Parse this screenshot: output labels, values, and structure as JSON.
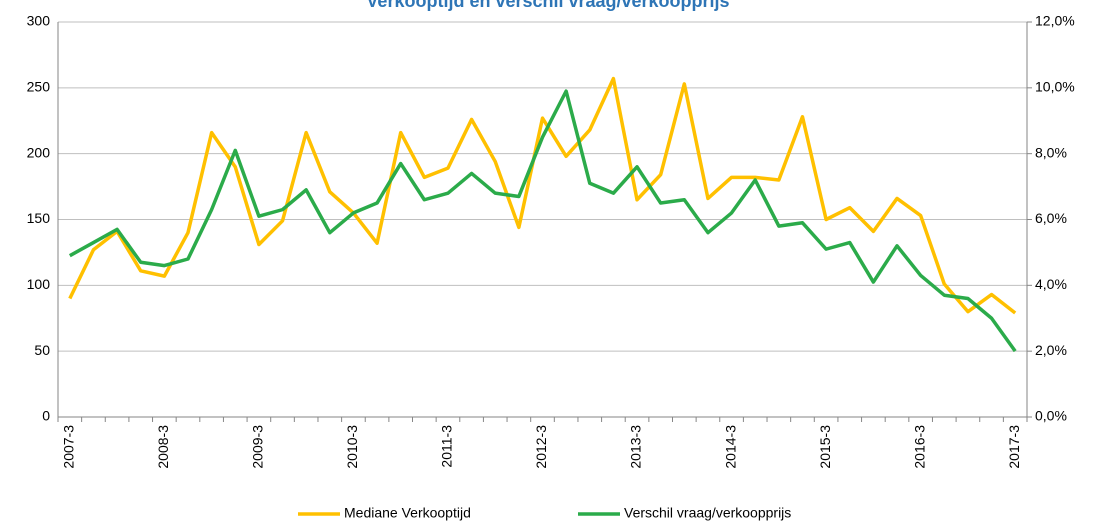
{
  "chart_data": {
    "type": "line",
    "title": "Verkooptijd en verschil vraag/verkoopprijs",
    "categories": [
      "2007-3",
      null,
      null,
      null,
      "2008-3",
      null,
      null,
      null,
      "2009-3",
      null,
      null,
      null,
      "2010-3",
      null,
      null,
      null,
      "2011-3",
      null,
      null,
      null,
      "2012-3",
      null,
      null,
      null,
      "2013-3",
      null,
      null,
      null,
      "2014-3",
      null,
      null,
      null,
      "2015-3",
      null,
      null,
      null,
      "2016-3",
      null,
      null,
      null,
      "2017-3"
    ],
    "series": [
      {
        "name": "Mediane Verkooptijd",
        "color": "#ffc000",
        "axis": "y",
        "values": [
          90,
          127,
          141,
          111,
          107,
          140,
          216,
          190,
          131,
          149,
          216,
          171,
          155,
          132,
          216,
          182,
          189,
          226,
          194,
          144,
          227,
          198,
          218,
          257,
          165,
          184,
          253,
          166,
          182,
          182,
          180,
          228,
          150,
          159,
          141,
          166,
          153,
          101,
          80,
          93,
          79
        ]
      },
      {
        "name": "Verschil vraag/verkoopprijs",
        "color": "#2bab4a",
        "axis": "y2",
        "values": [
          4.9,
          5.3,
          5.7,
          4.7,
          4.6,
          4.8,
          6.3,
          8.1,
          6.1,
          6.3,
          6.9,
          5.6,
          6.2,
          6.5,
          7.7,
          6.6,
          6.8,
          7.4,
          6.8,
          6.7,
          8.5,
          9.9,
          7.1,
          6.8,
          7.6,
          6.5,
          6.6,
          5.6,
          6.2,
          7.2,
          5.8,
          5.9,
          5.1,
          5.3,
          4.1,
          5.2,
          4.3,
          3.7,
          3.6,
          3.0,
          2.0
        ]
      }
    ],
    "ylim": [
      0,
      300
    ],
    "yticks": [
      0,
      50,
      100,
      150,
      200,
      250,
      300
    ],
    "y2lim": [
      0,
      12
    ],
    "y2ticks": [
      {
        "value": 0,
        "label": "0,0%"
      },
      {
        "value": 2,
        "label": "2,0%"
      },
      {
        "value": 4,
        "label": "4,0%"
      },
      {
        "value": 6,
        "label": "6,0%"
      },
      {
        "value": 8,
        "label": "8,0%"
      },
      {
        "value": 10,
        "label": "10,0%"
      },
      {
        "value": 12,
        "label": "12,0%"
      }
    ],
    "grid": true,
    "legend": "bottom"
  }
}
